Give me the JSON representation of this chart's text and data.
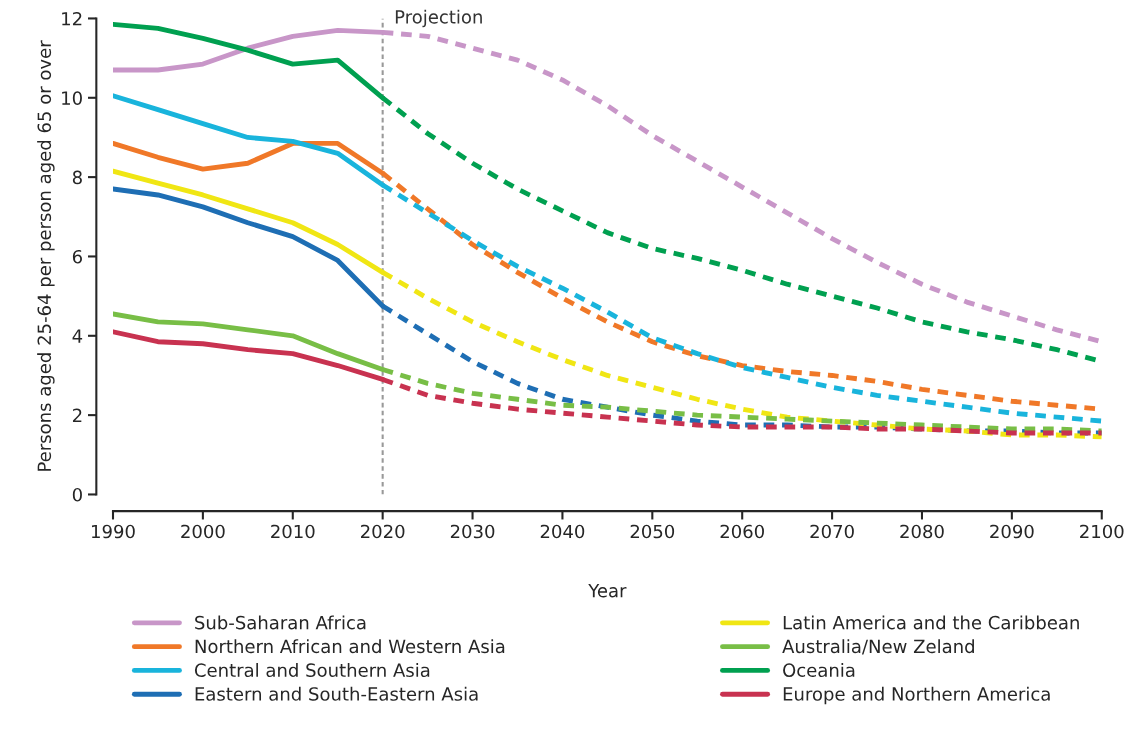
{
  "chart_data": {
    "type": "line",
    "xlabel": "Year",
    "ylabel": "Persons aged 25-64 per person aged 65 or over",
    "xlim": [
      1990,
      2100
    ],
    "xticks": [
      1990,
      2000,
      2010,
      2020,
      2030,
      2040,
      2050,
      2060,
      2070,
      2080,
      2090,
      2100
    ],
    "ylim": [
      0,
      12
    ],
    "yticks": [
      0,
      2,
      4,
      6,
      8,
      10,
      12
    ],
    "grid": false,
    "legend": "bottom",
    "ref_lines": [
      {
        "axis": "x",
        "value": 2020,
        "label": "Projection",
        "color": "#999999",
        "line_style": "dashed"
      }
    ],
    "series": [
      {
        "name": "Sub-Saharan Africa",
        "color": "#c896c8",
        "line_style": "solid",
        "x": [
          1990,
          1995,
          2000,
          2005,
          2010,
          2015,
          2020
        ],
        "values": [
          10.7,
          10.7,
          10.85,
          11.25,
          11.55,
          11.7,
          11.65
        ]
      },
      {
        "name": "Northern African and Western Asia",
        "color": "#f07828",
        "line_style": "solid",
        "x": [
          1990,
          1995,
          2000,
          2005,
          2010,
          2015,
          2020
        ],
        "values": [
          8.85,
          8.5,
          8.2,
          8.35,
          8.85,
          8.85,
          8.1
        ]
      },
      {
        "name": "Central and Southern Asia",
        "color": "#19b4dc",
        "line_style": "solid",
        "x": [
          1990,
          1995,
          2000,
          2005,
          2010,
          2015,
          2020
        ],
        "values": [
          10.05,
          9.7,
          9.35,
          9.0,
          8.9,
          8.6,
          7.8
        ]
      },
      {
        "name": "Eastern and South-Eastern Asia",
        "color": "#1e6eb4",
        "line_style": "solid",
        "x": [
          1990,
          1995,
          2000,
          2005,
          2010,
          2015,
          2020
        ],
        "values": [
          7.7,
          7.55,
          7.25,
          6.85,
          6.5,
          5.9,
          4.75
        ]
      },
      {
        "name": "Latin America and the Caribbean",
        "color": "#f0e614",
        "line_style": "solid",
        "x": [
          1990,
          1995,
          2000,
          2005,
          2010,
          2015,
          2020
        ],
        "values": [
          8.15,
          7.85,
          7.55,
          7.2,
          6.85,
          6.3,
          5.6
        ]
      },
      {
        "name": "Australia/New Zeland",
        "color": "#78be46",
        "line_style": "solid",
        "x": [
          1990,
          1995,
          2000,
          2005,
          2010,
          2015,
          2020
        ],
        "values": [
          4.55,
          4.35,
          4.3,
          4.15,
          4.0,
          3.55,
          3.15
        ]
      },
      {
        "name": "Oceania",
        "color": "#00a050",
        "line_style": "solid",
        "x": [
          1990,
          1995,
          2000,
          2005,
          2010,
          2015,
          2020
        ],
        "values": [
          11.85,
          11.75,
          11.5,
          11.2,
          10.85,
          10.95,
          10.0
        ]
      },
      {
        "name": "Europe and Northern America",
        "color": "#c83250",
        "line_style": "solid",
        "x": [
          1990,
          1995,
          2000,
          2005,
          2010,
          2015,
          2020
        ],
        "values": [
          4.1,
          3.85,
          3.8,
          3.65,
          3.55,
          3.25,
          2.9
        ]
      },
      {
        "color": "#c896c8",
        "line_style": "dashed",
        "x": [
          2020,
          2025,
          2030,
          2035,
          2040,
          2045,
          2050,
          2055,
          2060,
          2065,
          2070,
          2075,
          2080,
          2085,
          2090,
          2095,
          2100
        ],
        "values": [
          11.65,
          11.55,
          11.25,
          10.95,
          10.45,
          9.8,
          9.05,
          8.4,
          7.75,
          7.1,
          6.45,
          5.85,
          5.3,
          4.85,
          4.5,
          4.15,
          3.85
        ]
      },
      {
        "color": "#f07828",
        "line_style": "dashed",
        "x": [
          2020,
          2025,
          2030,
          2035,
          2040,
          2045,
          2050,
          2055,
          2060,
          2065,
          2070,
          2075,
          2080,
          2085,
          2090,
          2095,
          2100
        ],
        "values": [
          8.1,
          7.2,
          6.3,
          5.6,
          4.95,
          4.35,
          3.85,
          3.5,
          3.25,
          3.1,
          3.0,
          2.85,
          2.65,
          2.5,
          2.35,
          2.25,
          2.15
        ]
      },
      {
        "color": "#19b4dc",
        "line_style": "dashed",
        "x": [
          2020,
          2025,
          2030,
          2035,
          2040,
          2045,
          2050,
          2055,
          2060,
          2065,
          2070,
          2075,
          2080,
          2085,
          2090,
          2095,
          2100
        ],
        "values": [
          7.8,
          7.1,
          6.4,
          5.75,
          5.2,
          4.6,
          3.95,
          3.55,
          3.2,
          2.95,
          2.7,
          2.5,
          2.35,
          2.2,
          2.05,
          1.95,
          1.85
        ]
      },
      {
        "color": "#1e6eb4",
        "line_style": "dashed",
        "x": [
          2020,
          2025,
          2030,
          2035,
          2040,
          2045,
          2050,
          2055,
          2060,
          2065,
          2070,
          2075,
          2080,
          2085,
          2090,
          2095,
          2100
        ],
        "values": [
          4.75,
          4.05,
          3.35,
          2.8,
          2.4,
          2.2,
          2.0,
          1.85,
          1.75,
          1.75,
          1.7,
          1.7,
          1.65,
          1.6,
          1.6,
          1.55,
          1.55
        ]
      },
      {
        "color": "#f0e614",
        "line_style": "dashed",
        "x": [
          2020,
          2025,
          2030,
          2035,
          2040,
          2045,
          2050,
          2055,
          2060,
          2065,
          2070,
          2075,
          2080,
          2085,
          2090,
          2095,
          2100
        ],
        "values": [
          5.6,
          4.95,
          4.35,
          3.85,
          3.4,
          3.0,
          2.7,
          2.4,
          2.15,
          1.95,
          1.85,
          1.75,
          1.65,
          1.6,
          1.5,
          1.5,
          1.45
        ]
      },
      {
        "color": "#78be46",
        "line_style": "dashed",
        "x": [
          2020,
          2025,
          2030,
          2035,
          2040,
          2045,
          2050,
          2055,
          2060,
          2065,
          2070,
          2075,
          2080,
          2085,
          2090,
          2095,
          2100
        ],
        "values": [
          3.15,
          2.8,
          2.55,
          2.4,
          2.25,
          2.2,
          2.1,
          2.0,
          1.95,
          1.9,
          1.85,
          1.8,
          1.75,
          1.7,
          1.65,
          1.65,
          1.6
        ]
      },
      {
        "color": "#00a050",
        "line_style": "dashed",
        "x": [
          2020,
          2025,
          2030,
          2035,
          2040,
          2045,
          2050,
          2055,
          2060,
          2065,
          2070,
          2075,
          2080,
          2085,
          2090,
          2095,
          2100
        ],
        "values": [
          10.0,
          9.1,
          8.35,
          7.7,
          7.15,
          6.6,
          6.2,
          5.95,
          5.65,
          5.3,
          5.0,
          4.7,
          4.35,
          4.1,
          3.9,
          3.65,
          3.35
        ]
      },
      {
        "color": "#c83250",
        "line_style": "dashed",
        "x": [
          2020,
          2025,
          2030,
          2035,
          2040,
          2045,
          2050,
          2055,
          2060,
          2065,
          2070,
          2075,
          2080,
          2085,
          2090,
          2095,
          2100
        ],
        "values": [
          2.9,
          2.5,
          2.3,
          2.15,
          2.05,
          1.95,
          1.85,
          1.75,
          1.7,
          1.7,
          1.7,
          1.65,
          1.65,
          1.6,
          1.55,
          1.55,
          1.55
        ]
      }
    ]
  }
}
